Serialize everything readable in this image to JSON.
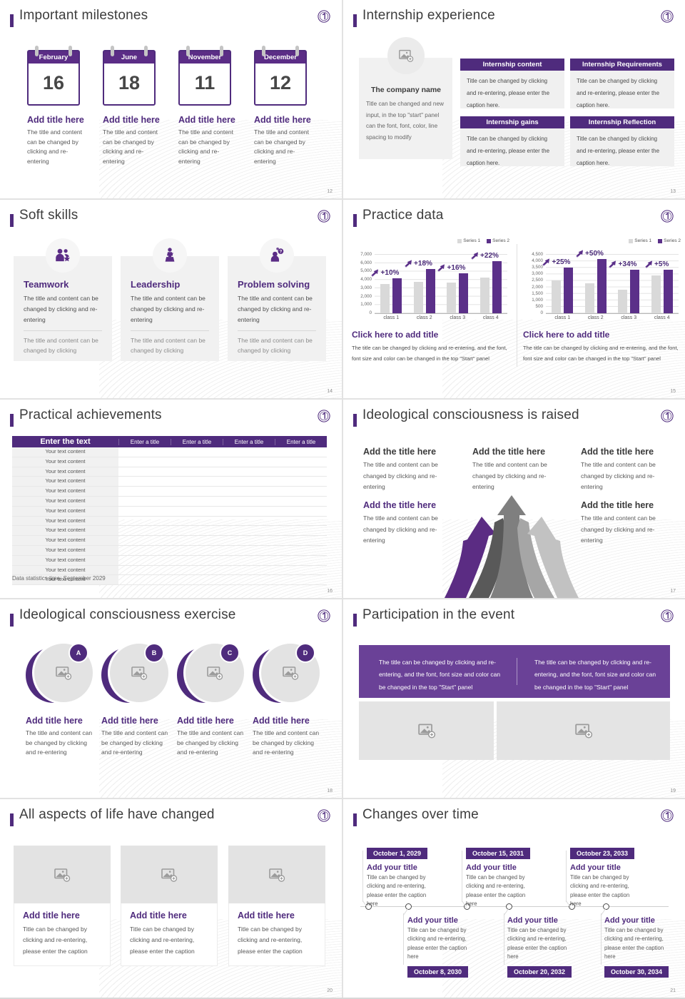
{
  "theme": {
    "primary": "#4f2b7d",
    "calendar_purple": "#5b2d86",
    "bar_purple": "#5b3089",
    "bar_gray": "#d9d9d9",
    "banner_purple": "#6a4197",
    "title_text": "#3d3d3d",
    "caption_text": "#595959"
  },
  "slides": {
    "milestones": {
      "page": "12",
      "title": "Important milestones",
      "caption": "The title and content can be changed by clicking and re-entering",
      "items": [
        {
          "month": "February",
          "day": "16",
          "title": "Add title here"
        },
        {
          "month": "June",
          "day": "18",
          "title": "Add title here"
        },
        {
          "month": "November",
          "day": "11",
          "title": "Add title here"
        },
        {
          "month": "December",
          "day": "12",
          "title": "Add title here"
        }
      ]
    },
    "internship": {
      "page": "13",
      "title": "Internship experience",
      "company_name": "The company name",
      "company_body": "Title can be changed and new input, in the top \"start\" panel can the font, font, color, line spacing to modify",
      "box_caption": "Title can be changed by clicking and re-entering, please enter the caption here.",
      "boxes": [
        {
          "header": "Internship content"
        },
        {
          "header": "Internship Requirements"
        },
        {
          "header": "Internship gains"
        },
        {
          "header": "Internship Reflection"
        }
      ]
    },
    "soft_skills": {
      "page": "14",
      "title": "Soft skills",
      "cards": [
        {
          "icon": "teamwork-icon",
          "title": "Teamwork",
          "text1": "The title and content can be changed by clicking and re-entering",
          "text2": "The title and content can be changed by clicking"
        },
        {
          "icon": "leadership-icon",
          "title": "Leadership",
          "text1": "The title and content can be changed by clicking and re-entering",
          "text2": "The title and content can be changed by clicking"
        },
        {
          "icon": "problem-solving-icon",
          "title": "Problem solving",
          "text1": "The title and content can be changed by clicking and re-entering",
          "text2": "The title and content can be changed by clicking"
        }
      ]
    },
    "practice": {
      "page": "15",
      "title": "Practice data"
    },
    "achievements": {
      "page": "16",
      "title": "Practical achievements",
      "table": {
        "main_header": "Enter the text",
        "col_headers": [
          "Enter a title",
          "Enter a title",
          "Enter a title",
          "Enter a title"
        ],
        "row_label": "Your text content",
        "row_count": 14
      },
      "footnote": "Data statistics time: September 2029"
    },
    "raised": {
      "page": "17",
      "title": "Ideological consciousness is raised",
      "caption": "The title and content can be changed by clicking and re-entering",
      "blocks": [
        {
          "title": "Add the title here"
        },
        {
          "title": "Add the title here"
        },
        {
          "title": "Add the title here"
        },
        {
          "title": "Add the title here"
        },
        {
          "title": "Add the title here"
        }
      ]
    },
    "exercise": {
      "page": "18",
      "title": "Ideological consciousness exercise",
      "caption": "The title and content can be changed by clicking and re-entering",
      "items": [
        {
          "badge": "A",
          "title": "Add title here"
        },
        {
          "badge": "B",
          "title": "Add title here"
        },
        {
          "badge": "C",
          "title": "Add title here"
        },
        {
          "badge": "D",
          "title": "Add title here"
        }
      ]
    },
    "participation": {
      "page": "19",
      "title": "Participation in the event",
      "banner_text": "The title can be changed by clicking and re-entering, and the font, font size and color can be changed in the top \"Start\" panel"
    },
    "aspects": {
      "page": "20",
      "title": "All aspects of life have changed",
      "card_title": "Add title here",
      "card_caption": "Title can be changed by clicking and re-entering, please enter the caption"
    },
    "timeline": {
      "page": "21",
      "title": "Changes over time",
      "item_title": "Add your title",
      "item_caption": "Title can be changed by clicking and re-entering, please enter the caption here",
      "top_dates": [
        "October 1, 2029",
        "October 15, 2031",
        "October 23, 2033"
      ],
      "bottom_dates": [
        "October 8, 2030",
        "October 20, 2032",
        "October 30, 2034"
      ]
    }
  },
  "chart_data": [
    {
      "type": "bar",
      "categories": [
        "class 1",
        "class 2",
        "class 3",
        "class 4"
      ],
      "series": [
        {
          "name": "Series 1",
          "values": [
            3500,
            3800,
            3700,
            4300
          ]
        },
        {
          "name": "Series 2",
          "values": [
            4200,
            5300,
            4800,
            6200
          ]
        }
      ],
      "annotations": [
        "+10%",
        "+18%",
        "+16%",
        "+22%"
      ],
      "ylim": [
        0,
        7000
      ],
      "ytick_step": 1000,
      "grid": true,
      "legend_position": "top-right",
      "title": "Click here to add title",
      "caption": "The title can be changed by clicking and re-entering, and the font, font size and color can be changed in the top \"Start\" panel"
    },
    {
      "type": "bar",
      "categories": [
        "class 1",
        "class 2",
        "class 3",
        "class 4"
      ],
      "series": [
        {
          "name": "Series 1",
          "values": [
            2500,
            2300,
            1800,
            2900
          ]
        },
        {
          "name": "Series 2",
          "values": [
            3500,
            4150,
            3350,
            3350
          ]
        }
      ],
      "annotations": [
        "+25%",
        "+50%",
        "+34%",
        "+5%"
      ],
      "ylim": [
        0,
        4500
      ],
      "ytick_step": 500,
      "grid": true,
      "legend_position": "top-right",
      "title": "Click here to add title",
      "caption": "The title can be changed by clicking and re-entering, and the font, font size and color can be changed in the top \"Start\" panel"
    }
  ]
}
